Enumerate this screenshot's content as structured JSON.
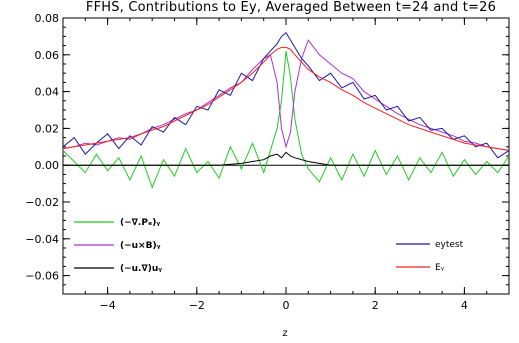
{
  "chart_data": {
    "type": "line",
    "title": "FFHS, Contributions to Ey, Averaged Between t=24 and t=26",
    "xlabel": "z",
    "ylabel": "",
    "xlim": [
      -5,
      5
    ],
    "ylim": [
      -0.07,
      0.08
    ],
    "xticks": [
      -4,
      -2,
      0,
      2,
      4
    ],
    "xtick_labels": [
      "−4",
      "−2",
      "0",
      "2",
      "4"
    ],
    "yticks": [
      0.08,
      0.06,
      0.04,
      0.02,
      0.0,
      -0.02,
      -0.04,
      -0.06
    ],
    "ytick_labels": [
      "0.08",
      "0.06",
      "0.04",
      "0.02",
      "0.00",
      "−0.02",
      "−0.04",
      "−0.06"
    ],
    "grid": false,
    "zero_line": true,
    "series": [
      {
        "name": "(−∇.Pₑ)ᵧ",
        "color": "#22cc22",
        "x": [
          -5,
          -4.75,
          -4.5,
          -4.25,
          -4,
          -3.75,
          -3.5,
          -3.25,
          -3,
          -2.75,
          -2.5,
          -2.25,
          -2,
          -1.75,
          -1.5,
          -1.25,
          -1,
          -0.75,
          -0.5,
          -0.35,
          -0.2,
          -0.1,
          0,
          0.1,
          0.2,
          0.35,
          0.5,
          0.75,
          1,
          1.25,
          1.5,
          1.75,
          2,
          2.25,
          2.5,
          2.75,
          3,
          3.25,
          3.5,
          3.75,
          4,
          4.25,
          4.5,
          4.75,
          5
        ],
        "values": [
          0.008,
          0.002,
          -0.004,
          0.006,
          -0.003,
          0.004,
          -0.008,
          0.005,
          -0.012,
          0.003,
          -0.006,
          0.009,
          -0.004,
          0.002,
          -0.007,
          0.01,
          -0.002,
          0.012,
          -0.004,
          0.008,
          0.02,
          0.035,
          0.062,
          0.048,
          0.025,
          0.006,
          -0.002,
          -0.009,
          0.004,
          -0.008,
          0.006,
          -0.006,
          0.008,
          -0.005,
          0.005,
          -0.008,
          0.004,
          -0.004,
          0.007,
          -0.006,
          0.003,
          -0.005,
          0.002,
          -0.004,
          0.005
        ]
      },
      {
        "name": "(−u×B)ᵧ",
        "color": "#aa33cc",
        "x": [
          -5,
          -4.75,
          -4.5,
          -4.25,
          -4,
          -3.75,
          -3.5,
          -3.25,
          -3,
          -2.75,
          -2.5,
          -2.25,
          -2,
          -1.75,
          -1.5,
          -1.25,
          -1,
          -0.75,
          -0.5,
          -0.35,
          -0.2,
          -0.1,
          0,
          0.1,
          0.2,
          0.35,
          0.5,
          0.75,
          1,
          1.25,
          1.5,
          1.75,
          2,
          2.25,
          2.5,
          2.75,
          3,
          3.25,
          3.5,
          3.75,
          4,
          4.25,
          4.5,
          4.75,
          5
        ],
        "values": [
          0.009,
          0.01,
          0.012,
          0.011,
          0.013,
          0.015,
          0.014,
          0.017,
          0.02,
          0.022,
          0.025,
          0.028,
          0.03,
          0.034,
          0.038,
          0.042,
          0.045,
          0.052,
          0.058,
          0.06,
          0.045,
          0.02,
          0.01,
          0.018,
          0.04,
          0.058,
          0.068,
          0.06,
          0.055,
          0.05,
          0.047,
          0.04,
          0.036,
          0.032,
          0.028,
          0.025,
          0.022,
          0.02,
          0.018,
          0.016,
          0.013,
          0.012,
          0.01,
          0.009,
          0.008
        ]
      },
      {
        "name": "(−u.∇)uᵧ",
        "color": "#000000",
        "x": [
          -5,
          -4.5,
          -4,
          -3.5,
          -3,
          -2.5,
          -2,
          -1.5,
          -1,
          -0.75,
          -0.5,
          -0.35,
          -0.2,
          -0.1,
          0,
          0.1,
          0.2,
          0.35,
          0.5,
          0.75,
          1,
          1.5,
          2,
          2.5,
          3,
          3.5,
          4,
          4.5,
          5
        ],
        "values": [
          0.0,
          0.0,
          0.0,
          0.0,
          0.0,
          0.0,
          0.0,
          0.0,
          0.001,
          0.002,
          0.003,
          0.005,
          0.006,
          0.004,
          0.007,
          0.005,
          0.004,
          0.003,
          0.002,
          0.001,
          0.0,
          0.0,
          0.0,
          0.0,
          0.0,
          0.0,
          0.0,
          0.0,
          0.0
        ]
      },
      {
        "name": "eytest",
        "color": "#1a1aa6",
        "x": [
          -5,
          -4.75,
          -4.5,
          -4.25,
          -4,
          -3.75,
          -3.5,
          -3.25,
          -3,
          -2.75,
          -2.5,
          -2.25,
          -2,
          -1.75,
          -1.5,
          -1.25,
          -1,
          -0.75,
          -0.5,
          -0.35,
          -0.2,
          -0.1,
          0,
          0.1,
          0.2,
          0.35,
          0.5,
          0.75,
          1,
          1.25,
          1.5,
          1.75,
          2,
          2.25,
          2.5,
          2.75,
          3,
          3.25,
          3.5,
          3.75,
          4,
          4.25,
          4.5,
          4.75,
          5
        ],
        "values": [
          0.01,
          0.015,
          0.006,
          0.012,
          0.017,
          0.009,
          0.016,
          0.011,
          0.021,
          0.018,
          0.026,
          0.022,
          0.032,
          0.03,
          0.041,
          0.038,
          0.05,
          0.046,
          0.058,
          0.062,
          0.066,
          0.07,
          0.072,
          0.068,
          0.064,
          0.058,
          0.054,
          0.046,
          0.05,
          0.042,
          0.045,
          0.036,
          0.038,
          0.03,
          0.032,
          0.024,
          0.026,
          0.019,
          0.02,
          0.014,
          0.016,
          0.01,
          0.012,
          0.004,
          0.008
        ]
      },
      {
        "name": "Eᵧ",
        "color": "#ee2222",
        "x": [
          -5,
          -4.75,
          -4.5,
          -4.25,
          -4,
          -3.75,
          -3.5,
          -3.25,
          -3,
          -2.75,
          -2.5,
          -2.25,
          -2,
          -1.75,
          -1.5,
          -1.25,
          -1,
          -0.75,
          -0.5,
          -0.35,
          -0.2,
          -0.1,
          0,
          0.1,
          0.2,
          0.35,
          0.5,
          0.75,
          1,
          1.25,
          1.5,
          1.75,
          2,
          2.25,
          2.5,
          2.75,
          3,
          3.25,
          3.5,
          3.75,
          4,
          4.25,
          4.5,
          4.75,
          5
        ],
        "values": [
          0.009,
          0.01,
          0.011,
          0.012,
          0.013,
          0.014,
          0.015,
          0.017,
          0.019,
          0.021,
          0.024,
          0.027,
          0.03,
          0.033,
          0.037,
          0.041,
          0.045,
          0.05,
          0.056,
          0.06,
          0.063,
          0.064,
          0.064,
          0.063,
          0.06,
          0.056,
          0.052,
          0.048,
          0.045,
          0.041,
          0.038,
          0.034,
          0.031,
          0.028,
          0.025,
          0.022,
          0.02,
          0.018,
          0.016,
          0.014,
          0.012,
          0.011,
          0.01,
          0.009,
          0.008
        ]
      }
    ],
    "legend_left": [
      0,
      1,
      2
    ],
    "legend_right": [
      3,
      4
    ]
  }
}
